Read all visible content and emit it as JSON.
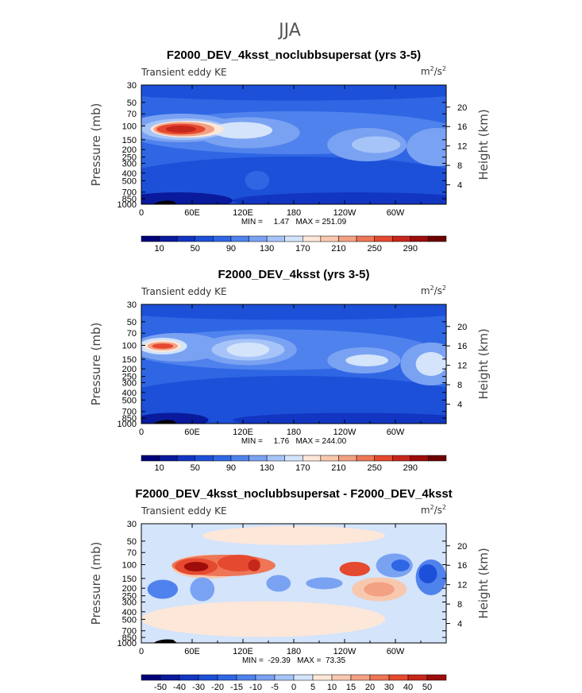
{
  "figure_title": "JJA",
  "chart_data": [
    {
      "type": "heatmap",
      "title": "F2000_DEV_4ksst_noclubbsupersat (yrs 3-5)",
      "left_label": "Transient eddy KE",
      "units": "m²/s²",
      "units_base": "m",
      "units_exp": "2",
      "units_mid": "/s",
      "units_exp2": "2",
      "ylabel": "Pressure (mb)",
      "ylabel_right": "Height (km)",
      "xlabel": "",
      "x_ticks": [
        "0",
        "60E",
        "120E",
        "180",
        "120W",
        "60W"
      ],
      "y_ticks": [
        "30",
        "50",
        "70",
        "100",
        "150",
        "200",
        "250",
        "300",
        "400",
        "500",
        "700",
        "850",
        "1000"
      ],
      "height_ticks": [
        "20",
        "16",
        "12",
        "8",
        "4"
      ],
      "min_max_text": "MIN =     1.47   MAX = 251.09",
      "min": 1.47,
      "max": 251.09,
      "colorbar_labels": [
        "10",
        "50",
        "90",
        "130",
        "170",
        "210",
        "250",
        "290"
      ],
      "colorbar_colors": [
        "#00007a",
        "#0a1a9c",
        "#1236c2",
        "#1d50d8",
        "#2f66e4",
        "#4f82ec",
        "#7aa2f2",
        "#a6c4f8",
        "#d3e4fb",
        "#fde7d9",
        "#f8c8ae",
        "#f3a183",
        "#ee7656",
        "#e5492f",
        "#c7261b",
        "#9e0c0c",
        "#6e0000"
      ]
    },
    {
      "type": "heatmap",
      "title": "F2000_DEV_4ksst (yrs 3-5)",
      "left_label": "Transient eddy KE",
      "units": "m²/s²",
      "units_base": "m",
      "units_exp": "2",
      "units_mid": "/s",
      "units_exp2": "2",
      "ylabel": "Pressure (mb)",
      "ylabel_right": "Height (km)",
      "xlabel": "",
      "x_ticks": [
        "0",
        "60E",
        "120E",
        "180",
        "120W",
        "60W"
      ],
      "y_ticks": [
        "30",
        "50",
        "70",
        "100",
        "150",
        "200",
        "250",
        "300",
        "400",
        "500",
        "700",
        "850",
        "1000"
      ],
      "height_ticks": [
        "20",
        "16",
        "12",
        "8",
        "4"
      ],
      "min_max_text": "MIN =     1.76   MAX = 244.00",
      "min": 1.76,
      "max": 244.0,
      "colorbar_labels": [
        "10",
        "50",
        "90",
        "130",
        "170",
        "210",
        "250",
        "290"
      ],
      "colorbar_colors": [
        "#00007a",
        "#0a1a9c",
        "#1236c2",
        "#1d50d8",
        "#2f66e4",
        "#4f82ec",
        "#7aa2f2",
        "#a6c4f8",
        "#d3e4fb",
        "#fde7d9",
        "#f8c8ae",
        "#f3a183",
        "#ee7656",
        "#e5492f",
        "#c7261b",
        "#9e0c0c",
        "#6e0000"
      ]
    },
    {
      "type": "heatmap",
      "title": "F2000_DEV_4ksst_noclubbsupersat - F2000_DEV_4ksst",
      "left_label": "Transient eddy KE",
      "units": "m²/s²",
      "units_base": "m",
      "units_exp": "2",
      "units_mid": "/s",
      "units_exp2": "2",
      "ylabel": "Pressure (mb)",
      "ylabel_right": "Height (km)",
      "xlabel": "",
      "x_ticks": [
        "0",
        "60E",
        "120E",
        "180",
        "120W",
        "60W"
      ],
      "y_ticks": [
        "30",
        "50",
        "70",
        "100",
        "150",
        "200",
        "250",
        "300",
        "400",
        "500",
        "700",
        "850",
        "1000"
      ],
      "height_ticks": [
        "20",
        "16",
        "12",
        "8",
        "4"
      ],
      "min_max_text": "MIN =  -29.39   MAX =  73.35",
      "min": -29.39,
      "max": 73.35,
      "colorbar_labels": [
        "-50",
        "-40",
        "-30",
        "-20",
        "-15",
        "-10",
        "-5",
        "0",
        "5",
        "10",
        "15",
        "20",
        "30",
        "40",
        "50"
      ],
      "colorbar_colors": [
        "#00007a",
        "#0a1a9c",
        "#1236c2",
        "#1d50d8",
        "#2f66e4",
        "#4f82ec",
        "#7aa2f2",
        "#a6c4f8",
        "#d3e4fb",
        "#fde7d9",
        "#f8c8ae",
        "#f3a183",
        "#ee7656",
        "#e5492f",
        "#c7261b",
        "#9e0c0c"
      ]
    }
  ]
}
